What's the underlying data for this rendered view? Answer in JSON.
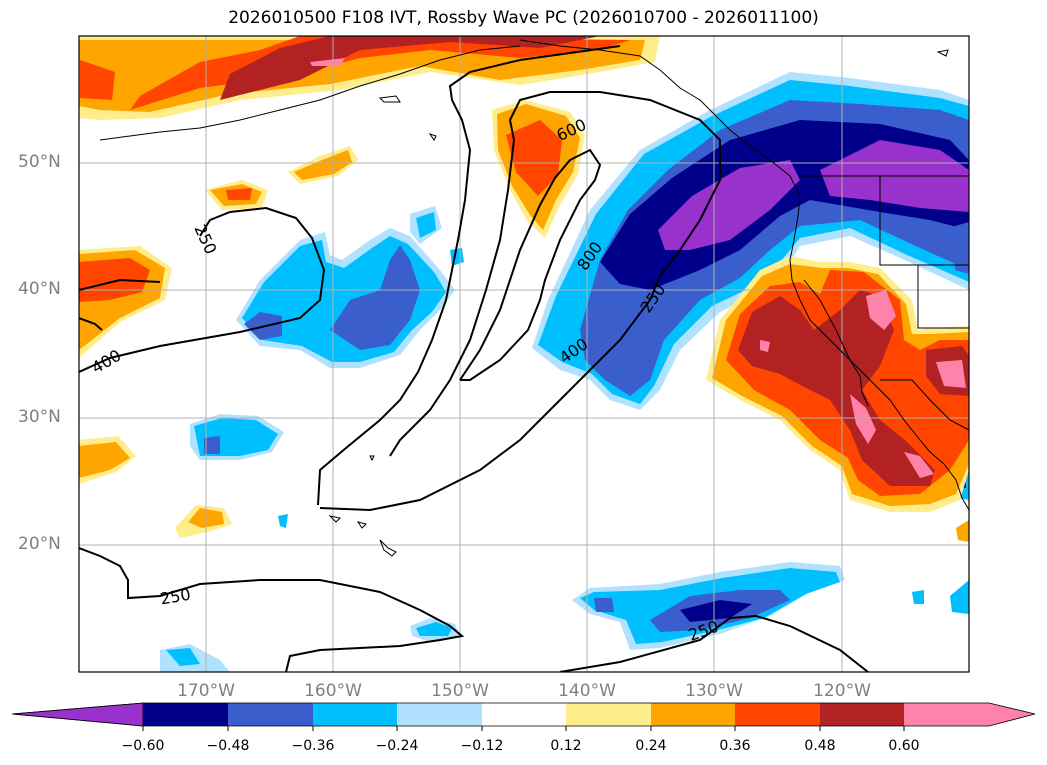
{
  "title": "2026010500 F108 IVT, Rossby Wave PC (2026010700 - 2026011100)",
  "map": {
    "projection": "equirectangular",
    "extent": {
      "lon": [
        -180,
        -110
      ],
      "lat": [
        10,
        60
      ]
    },
    "gridlines": true,
    "lat_labels": [
      "50°N",
      "40°N",
      "30°N",
      "20°N"
    ],
    "lon_labels": [
      "170°W",
      "160°W",
      "150°W",
      "140°W",
      "130°W",
      "120°W"
    ],
    "contour_labels": [
      "250",
      "400",
      "600",
      "800",
      "250",
      "400",
      "250",
      "250"
    ]
  },
  "colorbar": {
    "ticks": [
      "−0.60",
      "−0.48",
      "−0.36",
      "−0.24",
      "−0.12",
      "0.12",
      "0.24",
      "0.36",
      "0.48",
      "0.60"
    ],
    "colors": [
      "#9932cc",
      "#00008b",
      "#3a5fcd",
      "#00bfff",
      "#b0e2ff",
      "#ffffff",
      "#ffec8b",
      "#ffa500",
      "#ff4500",
      "#b22222",
      "#ff82ab"
    ],
    "extend": "both"
  }
}
